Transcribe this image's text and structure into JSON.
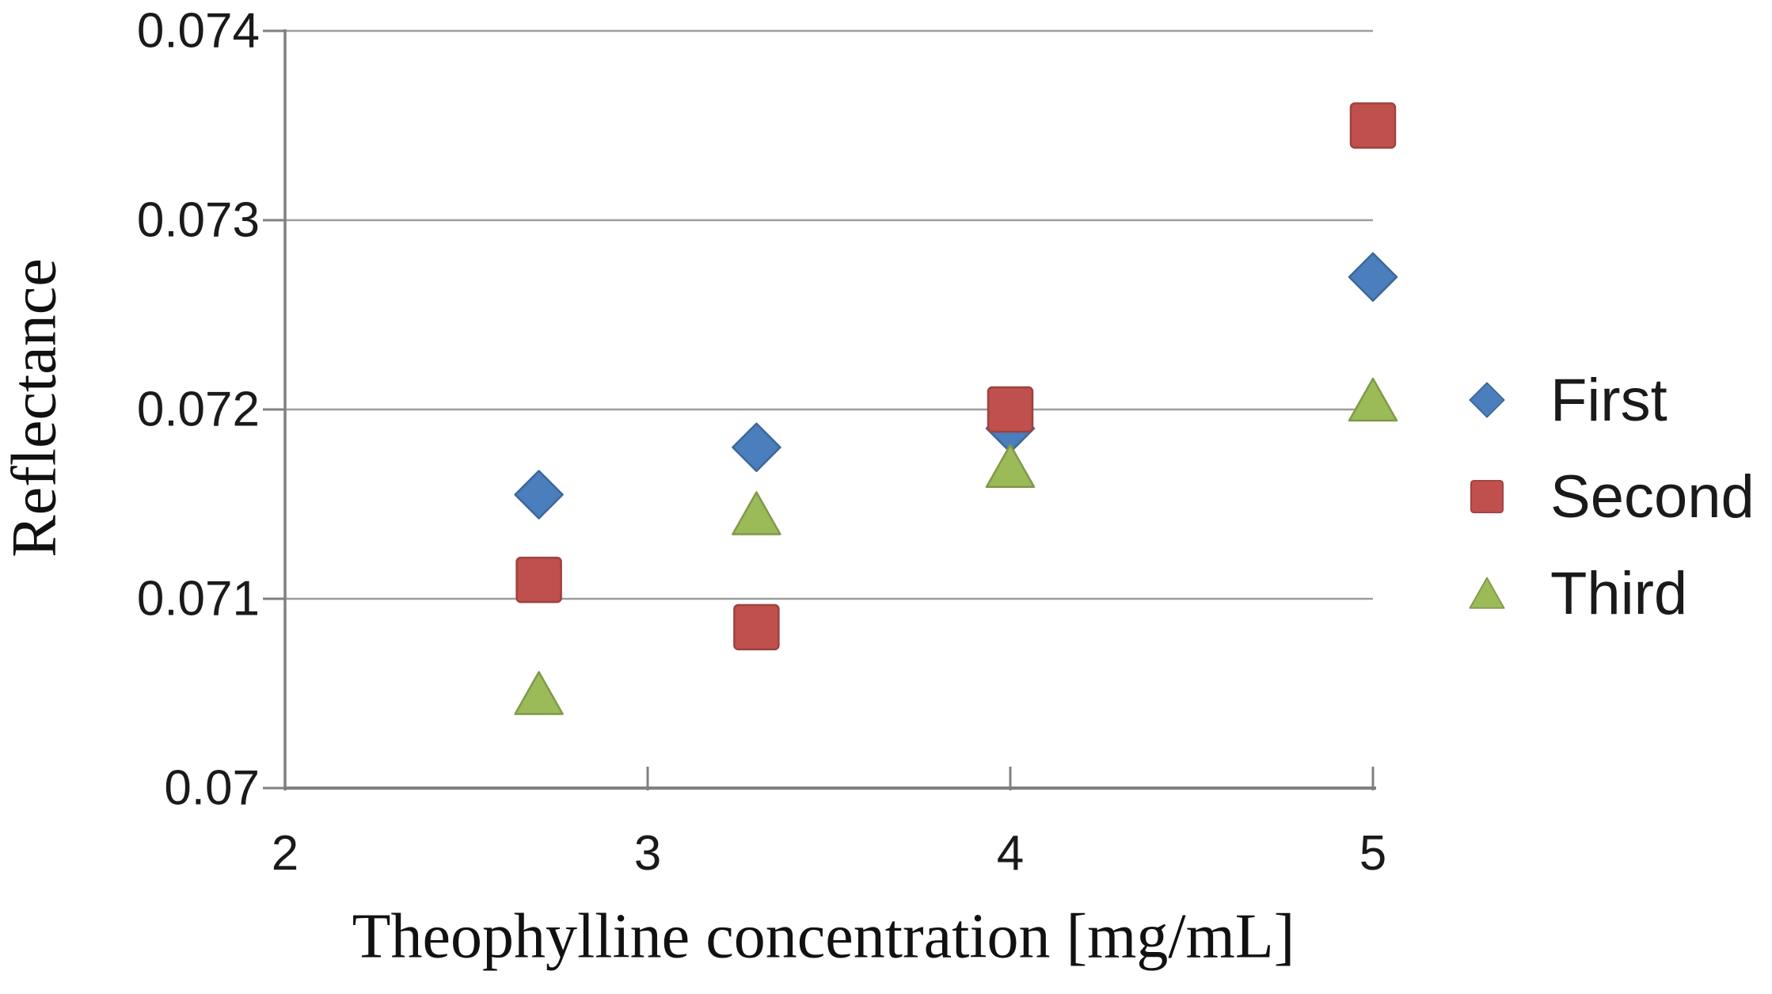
{
  "figure": {
    "background": "#ffffff"
  },
  "chart_data": {
    "type": "scatter",
    "xlabel": "Theophylline concentration [mg/mL]",
    "ylabel": "Reflectance",
    "xlim": [
      2,
      5
    ],
    "ylim": [
      0.07,
      0.074
    ],
    "grid": "horizontal-only",
    "legend_position": "right-center",
    "axis_color": "#808080",
    "gridline_color": "#9d9d9d",
    "text_color": "#1a1a1a",
    "x_ticks": [
      {
        "value": 2,
        "label": "2"
      },
      {
        "value": 3,
        "label": "3"
      },
      {
        "value": 4,
        "label": "4"
      },
      {
        "value": 5,
        "label": "5"
      }
    ],
    "y_ticks": [
      {
        "value": 0.07,
        "label": "0.07"
      },
      {
        "value": 0.071,
        "label": "0.071"
      },
      {
        "value": 0.072,
        "label": "0.072"
      },
      {
        "value": 0.073,
        "label": "0.073"
      },
      {
        "value": 0.074,
        "label": "0.074"
      }
    ],
    "series": [
      {
        "name": "First",
        "marker": "diamond",
        "color": "#4a7ebc",
        "points": [
          [
            2.7,
            0.07155
          ],
          [
            3.3,
            0.0718
          ],
          [
            4,
            0.0719
          ],
          [
            5,
            0.0727
          ]
        ]
      },
      {
        "name": "Second",
        "marker": "square",
        "color": "#c0504d",
        "points": [
          [
            2.7,
            0.0711
          ],
          [
            3.3,
            0.07085
          ],
          [
            4,
            0.072
          ],
          [
            5,
            0.0735
          ]
        ]
      },
      {
        "name": "Third",
        "marker": "triangle",
        "color": "#9bbb59",
        "points": [
          [
            2.7,
            0.0705
          ],
          [
            3.3,
            0.07145
          ],
          [
            4,
            0.0717
          ],
          [
            5,
            0.07205
          ]
        ]
      }
    ]
  }
}
